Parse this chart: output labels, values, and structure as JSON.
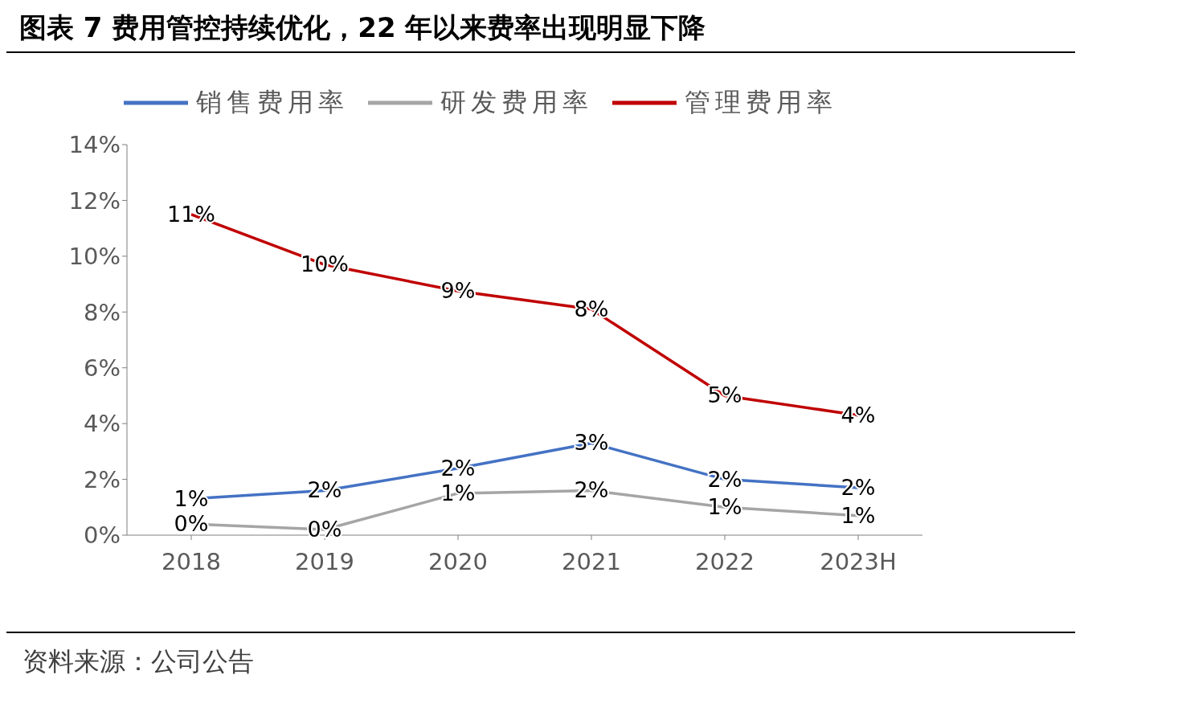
{
  "chart_data": {
    "type": "line",
    "title": "图表 7 费用管控持续优化，22 年以来费率出现明显下降",
    "categories": [
      "2018",
      "2019",
      "2020",
      "2021",
      "2022",
      "2023H"
    ],
    "series": [
      {
        "name": "销售费用率",
        "color": "#4472c4",
        "values": [
          1.3,
          1.6,
          2.4,
          3.3,
          2.0,
          1.7
        ],
        "value_labels": [
          "1%",
          "2%",
          "2%",
          "3%",
          "2%",
          "2%"
        ]
      },
      {
        "name": "研发费用率",
        "color": "#a5a5a5",
        "values": [
          0.4,
          0.2,
          1.5,
          1.6,
          1.0,
          0.7
        ],
        "value_labels": [
          "0%",
          "0%",
          "1%",
          "2%",
          "1%",
          "1%"
        ]
      },
      {
        "name": "管理费用率",
        "color": "#c00000",
        "values": [
          11.5,
          9.7,
          8.75,
          8.1,
          5.0,
          4.3
        ],
        "value_labels": [
          "11%",
          "10%",
          "9%",
          "8%",
          "5%",
          "4%"
        ]
      }
    ],
    "ylim": [
      0,
      14
    ],
    "yticks": [
      {
        "value": 0,
        "label": "0%"
      },
      {
        "value": 2,
        "label": "2%"
      },
      {
        "value": 4,
        "label": "4%"
      },
      {
        "value": 6,
        "label": "6%"
      },
      {
        "value": 8,
        "label": "8%"
      },
      {
        "value": 10,
        "label": "10%"
      },
      {
        "value": 12,
        "label": "12%"
      },
      {
        "value": 14,
        "label": "14%"
      }
    ],
    "grid": false,
    "legend": "top",
    "marker": "none",
    "line_style": "solid",
    "annotations": [
      "资料来源：公司公告"
    ]
  }
}
